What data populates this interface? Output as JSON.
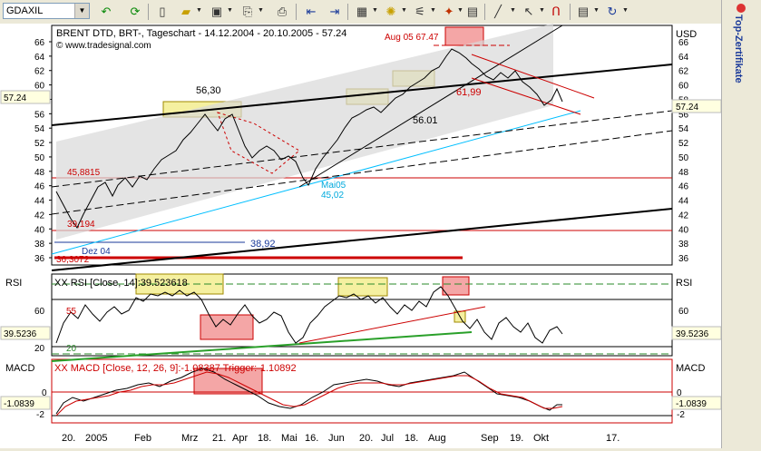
{
  "symbol_input": "GDAXIL",
  "side_panel_title": "Top-Zertifikate",
  "chart_data": [
    {
      "type": "line",
      "panel": "price",
      "header": "BRENT DTD, BRT-, Tageschart - 14.12.2004 - 20.10.2005 - 57.24",
      "source": "© www.tradesignal.com",
      "currency_label": "USD",
      "y_ticks": [
        66,
        64,
        62,
        60,
        58,
        56,
        54,
        52,
        50,
        48,
        46,
        44,
        42,
        40,
        38,
        36
      ],
      "y_ticks_right": [
        66,
        64,
        62,
        60,
        58,
        56,
        54,
        52,
        50,
        48,
        46,
        44,
        42,
        40,
        38,
        36
      ],
      "last_value": "57.24",
      "ylim": [
        35,
        67
      ],
      "annotations": {
        "high_label": "Aug 05 67.47",
        "level_5630": "56,30",
        "level_5601": "56.01",
        "level_6199": "61,99",
        "level_45815": "45,8815",
        "level_39194": "39,194",
        "low_dez": "Dez 04",
        "level_363": "36,3072",
        "mai05": "Mai05",
        "mai05_value": "45,02",
        "level_3892": "38,92"
      }
    },
    {
      "type": "line",
      "panel": "rsi",
      "panel_label": "RSI",
      "legend": "XX RSI [Close, 14]:39.523618",
      "y_ticks": [
        60,
        20
      ],
      "last_value": "39.5236",
      "level_55": "55",
      "level_20": "20"
    },
    {
      "type": "line",
      "panel": "macd",
      "panel_label": "MACD",
      "legend": "XX MACD [Close, 12, 26, 9]:-1.08387 Trigger:-1.10892",
      "y_ticks": [
        0,
        -2
      ],
      "last_value": "-1.0839"
    }
  ],
  "x_axis_labels": [
    "20.",
    "2005",
    "Feb",
    "Mrz",
    "21.",
    "Apr",
    "18.",
    "Mai",
    "16.",
    "Jun",
    "20.",
    "Jul",
    "18.",
    "Aug",
    "Sep",
    "19.",
    "Okt",
    "17."
  ],
  "colors": {
    "price_line": "#000000",
    "red_line": "#cc0000",
    "cyan_line": "#00bfff",
    "highlight_yellow": "#f5f0a0",
    "highlight_red": "#f4a6a6"
  }
}
